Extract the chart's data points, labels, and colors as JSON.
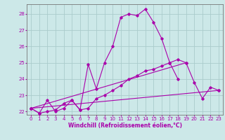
{
  "background_color": "#cce8e8",
  "grid_color": "#aacccc",
  "line_color": "#aa00aa",
  "xlim": [
    -0.5,
    23.5
  ],
  "ylim": [
    21.8,
    28.6
  ],
  "yticks": [
    22,
    23,
    24,
    25,
    26,
    27,
    28
  ],
  "xticks": [
    0,
    1,
    2,
    3,
    4,
    5,
    6,
    7,
    8,
    9,
    10,
    11,
    12,
    13,
    14,
    15,
    16,
    17,
    18,
    19,
    20,
    21,
    22,
    23
  ],
  "xlabel": "Windchill (Refroidissement éolien,°C)",
  "xlabel_fontsize": 5.5,
  "tick_fontsize": 5,
  "series": [
    {
      "x": [
        0,
        1,
        2,
        3,
        4,
        5,
        6,
        7,
        8,
        9,
        10,
        11,
        12,
        13,
        14,
        15,
        16,
        17,
        18,
        19,
        20,
        21,
        22,
        23
      ],
      "y": [
        22.2,
        21.9,
        22.7,
        22.0,
        22.2,
        22.7,
        22.1,
        24.9,
        23.4,
        25.0,
        26.0,
        27.8,
        28.0,
        27.9,
        28.3,
        27.5,
        26.5,
        25.0,
        24.0,
        null,
        null,
        null,
        null,
        null
      ]
    },
    {
      "x": [
        0,
        23
      ],
      "y": [
        22.2,
        23.3
      ]
    },
    {
      "x": [
        0,
        19
      ],
      "y": [
        22.2,
        25.0
      ]
    },
    {
      "x": [
        0,
        1,
        2,
        3,
        4,
        5,
        6,
        7,
        8,
        9,
        10,
        11,
        12,
        13,
        14,
        15,
        16,
        17,
        18,
        19,
        20,
        21,
        22,
        23
      ],
      "y": [
        22.2,
        21.9,
        22.0,
        22.1,
        22.5,
        22.7,
        22.1,
        22.2,
        22.8,
        23.0,
        23.3,
        23.6,
        24.0,
        24.2,
        24.5,
        24.6,
        24.8,
        25.0,
        25.2,
        25.0,
        23.8,
        22.8,
        23.5,
        23.3
      ]
    }
  ]
}
